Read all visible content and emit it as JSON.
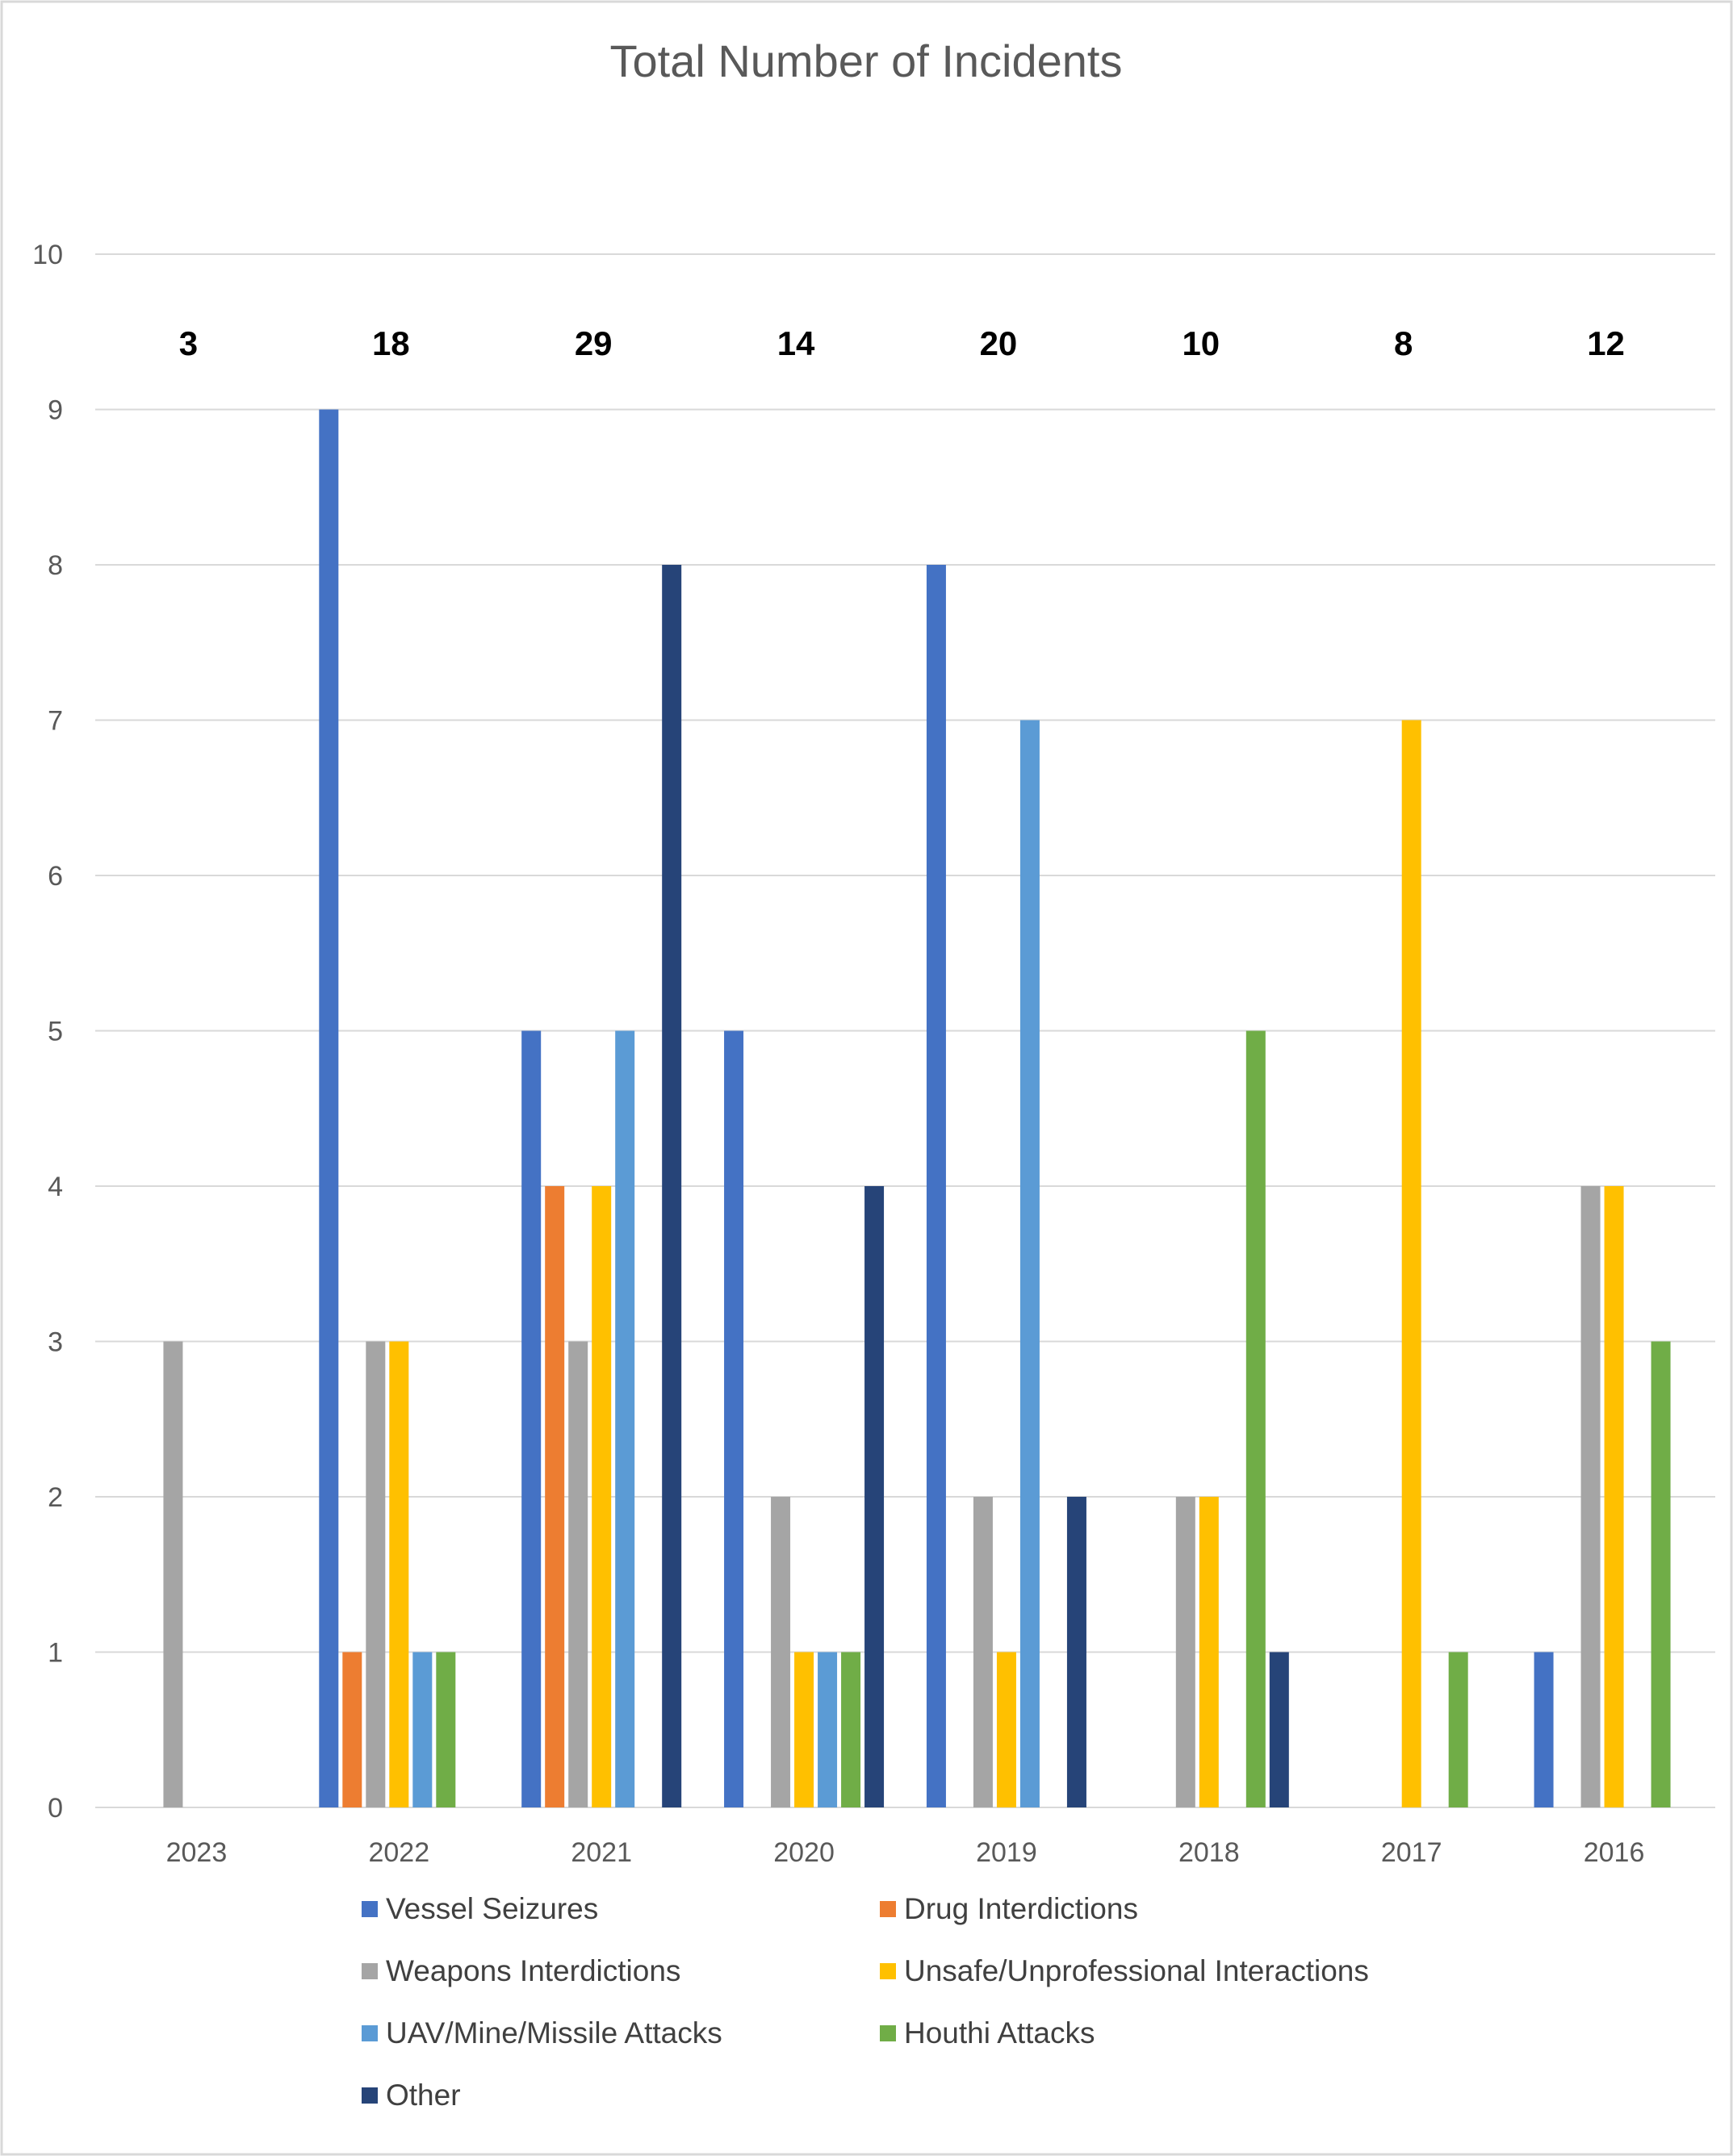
{
  "chart_data": {
    "type": "bar",
    "title": "Total Number of Incidents",
    "xlabel": "",
    "ylabel": "",
    "ylim": [
      0,
      10
    ],
    "yticks": [
      0,
      1,
      2,
      3,
      4,
      5,
      6,
      7,
      8,
      9,
      10
    ],
    "grid": true,
    "legend_position": "bottom",
    "categories": [
      "2023",
      "2022",
      "2021",
      "2020",
      "2019",
      "2018",
      "2017",
      "2016"
    ],
    "totals": [
      "3",
      "18",
      "29",
      "14",
      "20",
      "10",
      "8",
      "12"
    ],
    "series": [
      {
        "name": "Vessel Seizures",
        "color": "#4472C4",
        "values": [
          0,
          9,
          5,
          5,
          8,
          0,
          0,
          1
        ]
      },
      {
        "name": "Drug Interdictions",
        "color": "#ED7D31",
        "values": [
          0,
          1,
          4,
          0,
          0,
          0,
          0,
          0
        ]
      },
      {
        "name": "Weapons Interdictions",
        "color": "#A5A5A5",
        "values": [
          3,
          3,
          3,
          2,
          2,
          2,
          0,
          4
        ]
      },
      {
        "name": "Unsafe/Unprofessional Interactions",
        "color": "#FFC000",
        "values": [
          0,
          3,
          4,
          1,
          1,
          2,
          7,
          4
        ]
      },
      {
        "name": "UAV/Mine/Missile Attacks",
        "color": "#5B9BD5",
        "values": [
          0,
          1,
          5,
          1,
          7,
          0,
          0,
          0
        ]
      },
      {
        "name": "Houthi Attacks",
        "color": "#70AD47",
        "values": [
          0,
          1,
          0,
          1,
          0,
          5,
          1,
          3
        ]
      },
      {
        "name": "Other",
        "color": "#264478",
        "values": [
          0,
          0,
          8,
          4,
          2,
          1,
          0,
          0
        ]
      }
    ]
  }
}
